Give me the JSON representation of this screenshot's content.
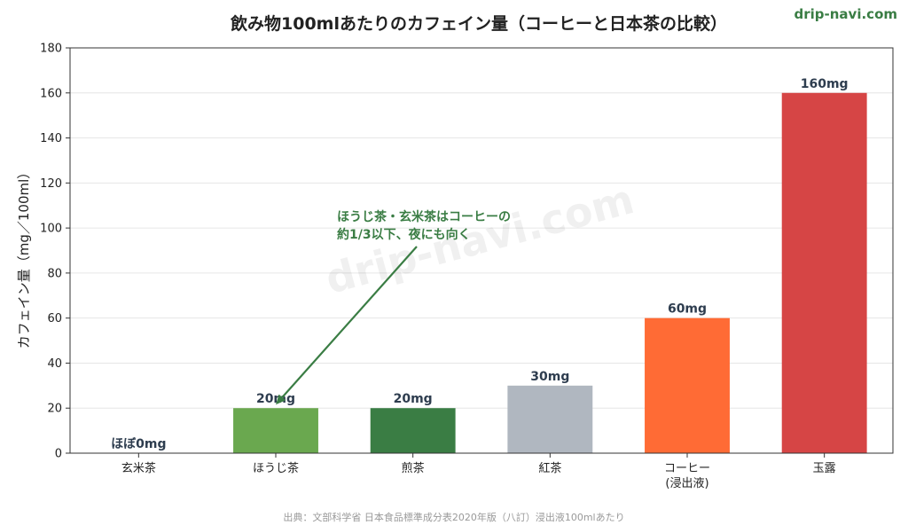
{
  "chart_data": {
    "type": "bar",
    "title": "飲み物100mlあたりのカフェイン量（コーヒーと日本茶の比較）",
    "ylabel": "カフェイン量（mg／100ml）",
    "xlabel": "",
    "ylim": [
      0,
      180
    ],
    "yticks": [
      0,
      20,
      40,
      60,
      80,
      100,
      120,
      140,
      160,
      180
    ],
    "grid": "horizontal",
    "categories": [
      [
        "玄米茶"
      ],
      [
        "ほうじ茶"
      ],
      [
        "煎茶"
      ],
      [
        "紅茶"
      ],
      [
        "コーヒー",
        "(浸出液)"
      ],
      [
        "玉露"
      ]
    ],
    "values": [
      0,
      20,
      20,
      30,
      60,
      160
    ],
    "data_labels": [
      "ほぼ0mg",
      "20mg",
      "20mg",
      "30mg",
      "60mg",
      "160mg"
    ],
    "colors": [
      "#6aa84f",
      "#6aa84f",
      "#3a7d44",
      "#b0b7c0",
      "#ff6b35",
      "#d64545"
    ],
    "annotation": {
      "lines": [
        "ほうじ茶・玄米茶はコーヒーの",
        "約1/3以下、夜にも向く"
      ],
      "target_category_index": 1,
      "target_value": 20,
      "color": "#3a7d44"
    }
  },
  "brand": "drip-navi.com",
  "watermark": "drip-navi.com",
  "source": "出典：文部科学省 日本食品標準成分表2020年版（八訂）浸出液100mlあたり"
}
